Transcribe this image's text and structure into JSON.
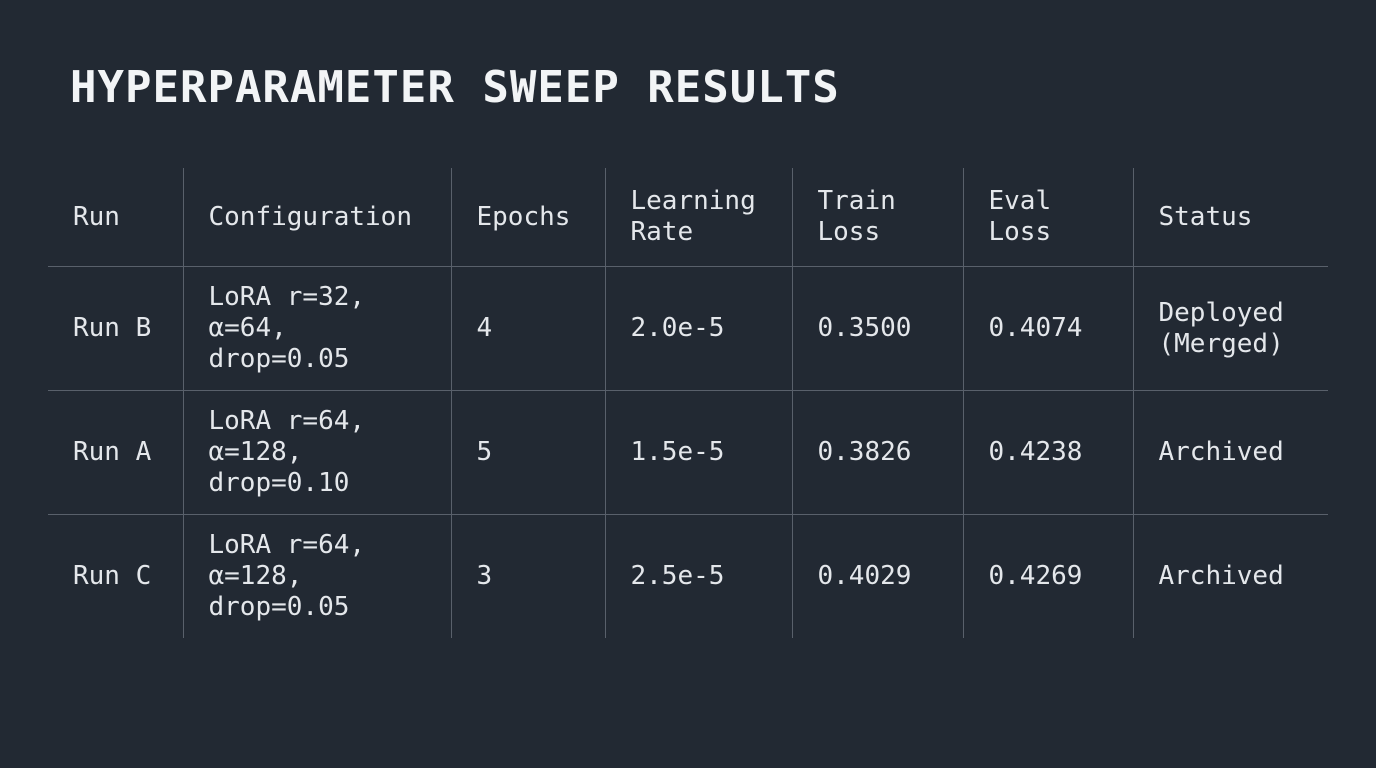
{
  "title": "HYPERPARAMETER SWEEP RESULTS",
  "table": {
    "columns": [
      "Run",
      "Configuration",
      "Epochs",
      "Learning\nRate",
      "Train\nLoss",
      "Eval\nLoss",
      "Status"
    ],
    "rows": [
      [
        "Run B",
        "LoRA r=32,\nα=64,\ndrop=0.05",
        "4",
        "2.0e-5",
        "0.3500",
        "0.4074",
        "Deployed\n(Merged)"
      ],
      [
        "Run A",
        "LoRA r=64,\nα=128,\ndrop=0.10",
        "5",
        "1.5e-5",
        "0.3826",
        "0.4238",
        "Archived"
      ],
      [
        "Run C",
        "LoRA r=64,\nα=128,\ndrop=0.05",
        "3",
        "2.5e-5",
        "0.4029",
        "0.4269",
        "Archived"
      ]
    ]
  }
}
